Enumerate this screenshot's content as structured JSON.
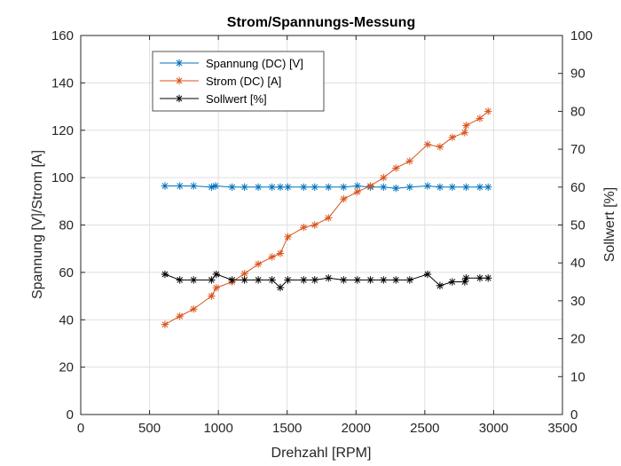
{
  "chart_data": {
    "type": "line",
    "title": "Strom/Spannungs-Messung",
    "xlabel": "Drehzahl [RPM]",
    "ylabel_left": "Spannung [V]/Strom [A]",
    "ylabel_right": "Sollwert [%]",
    "xlim": [
      0,
      3500
    ],
    "ylim_left": [
      0,
      160
    ],
    "ylim_right": [
      0,
      100
    ],
    "x_ticks": [
      0,
      500,
      1000,
      1500,
      2000,
      2500,
      3000,
      3500
    ],
    "y_ticks_left": [
      0,
      20,
      40,
      60,
      80,
      100,
      120,
      140,
      160
    ],
    "y_ticks_right": [
      0,
      10,
      20,
      30,
      40,
      50,
      60,
      70,
      80,
      90,
      100
    ],
    "grid": true,
    "legend_position": "top-left",
    "series": [
      {
        "name": "Spannung (DC) [V]",
        "axis": "left",
        "color": "#0072BD",
        "marker": "asterisk",
        "x": [
          612,
          720,
          820,
          950,
          980,
          1100,
          1190,
          1290,
          1390,
          1450,
          1505,
          1620,
          1700,
          1800,
          1910,
          2010,
          2105,
          2200,
          2290,
          2390,
          2520,
          2610,
          2700,
          2800,
          2900,
          2960
        ],
        "y": [
          96.5,
          96.5,
          96.5,
          96.0,
          96.5,
          96.0,
          96.0,
          96.0,
          96.0,
          96.0,
          96.0,
          96.0,
          96.0,
          96.0,
          96.0,
          96.5,
          96.0,
          96.0,
          95.5,
          96.0,
          96.5,
          96.0,
          96.0,
          96.0,
          96.0,
          96.0
        ]
      },
      {
        "name": "Strom (DC) [A]",
        "axis": "left",
        "color": "#D95319",
        "marker": "asterisk",
        "x": [
          612,
          720,
          820,
          950,
          985,
          1100,
          1190,
          1290,
          1390,
          1450,
          1505,
          1620,
          1700,
          1800,
          1910,
          2010,
          2105,
          2200,
          2290,
          2390,
          2520,
          2610,
          2700,
          2790,
          2800,
          2900,
          2960
        ],
        "y": [
          38,
          41.5,
          44.5,
          50,
          53.5,
          56,
          59.5,
          63.5,
          66.5,
          68,
          75,
          79,
          80,
          83,
          91,
          94,
          96.5,
          100,
          104,
          107,
          114,
          113,
          117,
          119,
          122,
          125,
          128
        ]
      },
      {
        "name": "Sollwert [%]",
        "axis": "right",
        "color": "#000000",
        "marker": "asterisk",
        "x": [
          612,
          720,
          820,
          950,
          985,
          1100,
          1190,
          1290,
          1390,
          1450,
          1505,
          1620,
          1700,
          1800,
          1910,
          2010,
          2105,
          2200,
          2290,
          2390,
          2520,
          2610,
          2700,
          2790,
          2800,
          2900,
          2960
        ],
        "y": [
          37,
          35.5,
          35.5,
          35.5,
          37,
          35.5,
          35.5,
          35.5,
          35.5,
          33.5,
          35.5,
          35.5,
          35.5,
          36,
          35.5,
          35.5,
          35.5,
          35.5,
          35.5,
          35.5,
          37,
          34,
          35,
          35,
          36,
          36,
          36
        ]
      }
    ]
  }
}
